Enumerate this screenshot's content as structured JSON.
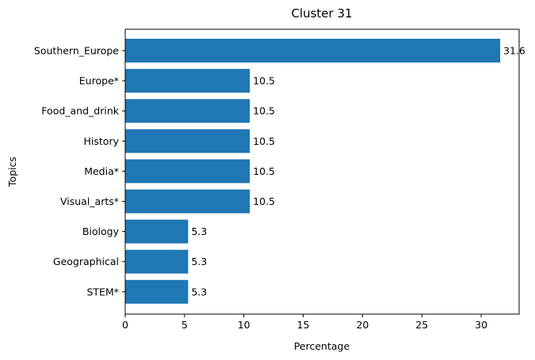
{
  "chart_data": {
    "type": "bar",
    "orientation": "horizontal",
    "title": "Cluster 31",
    "xlabel": "Percentage",
    "ylabel": "Topics",
    "categories": [
      "Southern_Europe",
      "Europe*",
      "Food_and_drink",
      "History",
      "Media*",
      "Visual_arts*",
      "Biology",
      "Geographical",
      "STEM*"
    ],
    "values": [
      31.6,
      10.5,
      10.5,
      10.5,
      10.5,
      10.5,
      5.3,
      5.3,
      5.3
    ],
    "xlim": [
      0,
      33.2
    ],
    "xticks": [
      0,
      5,
      10,
      15,
      20,
      25,
      30
    ],
    "grid": false,
    "bar_color": "#1f77b4"
  }
}
